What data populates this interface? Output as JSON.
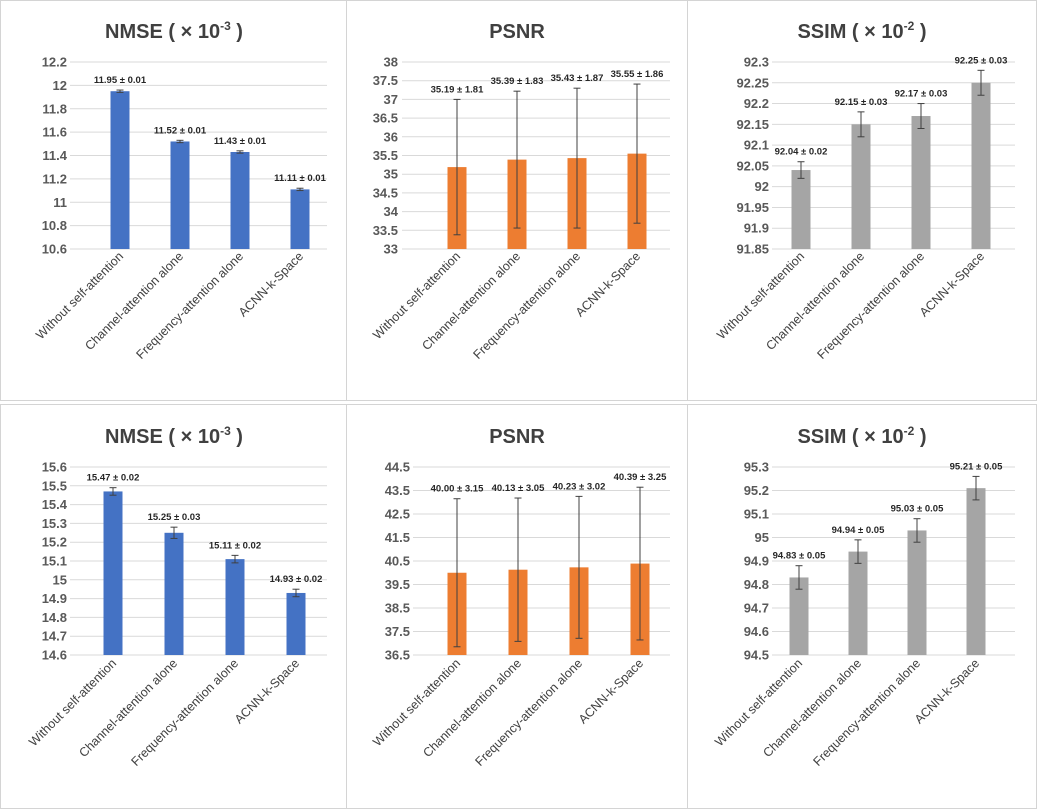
{
  "chart_data": [
    {
      "type": "bar",
      "title_main": "NMSE ( × 10",
      "title_sup": "-3",
      "title_end": " )",
      "color": "#4472c4",
      "categories": [
        "Without self-attention",
        "Channel-attention alone",
        "Frequency-attention alone",
        "ACNN-k-Space"
      ],
      "values": [
        11.95,
        11.52,
        11.43,
        11.11
      ],
      "errors": [
        0.01,
        0.01,
        0.01,
        0.01
      ],
      "data_labels": [
        "11.95 ± 0.01",
        "11.52 ± 0.01",
        "11.43 ± 0.01",
        "11.11 ± 0.01"
      ],
      "ylim": [
        10.6,
        12.2
      ],
      "yticks": [
        "10.6",
        "10.8",
        "11",
        "11.2",
        "11.4",
        "11.6",
        "11.8",
        "12",
        "12.2"
      ],
      "grid": true
    },
    {
      "type": "bar",
      "title_main": "PSNR",
      "title_sup": "",
      "title_end": "",
      "color": "#ed7d31",
      "categories": [
        "Without self-attention",
        "Channel-attention alone",
        "Frequency-attention alone",
        "ACNN-k-Space"
      ],
      "values": [
        35.19,
        35.39,
        35.43,
        35.55
      ],
      "errors": [
        1.81,
        1.83,
        1.87,
        1.86
      ],
      "data_labels": [
        "35.19 ± 1.81",
        "35.39 ± 1.83",
        "35.43 ± 1.87",
        "35.55 ± 1.86"
      ],
      "ylim": [
        33,
        38
      ],
      "yticks": [
        "33",
        "33.5",
        "34",
        "34.5",
        "35",
        "35.5",
        "36",
        "36.5",
        "37",
        "37.5",
        "38"
      ],
      "grid": true
    },
    {
      "type": "bar",
      "title_main": "SSIM ( × 10",
      "title_sup": "-2",
      "title_end": " )",
      "color": "#a5a5a5",
      "categories": [
        "Without self-attention",
        "Channel-attention alone",
        "Frequency-attention alone",
        "ACNN-k-Space"
      ],
      "values": [
        92.04,
        92.15,
        92.17,
        92.25
      ],
      "errors": [
        0.02,
        0.03,
        0.03,
        0.03
      ],
      "data_labels": [
        "92.04 ± 0.02",
        "92.15 ± 0.03",
        "92.17 ± 0.03",
        "92.25 ± 0.03"
      ],
      "ylim": [
        91.85,
        92.3
      ],
      "yticks": [
        "91.85",
        "91.9",
        "91.95",
        "92",
        "92.05",
        "92.1",
        "92.15",
        "92.2",
        "92.25",
        "92.3"
      ],
      "grid": true
    },
    {
      "type": "bar",
      "title_main": "NMSE ( × 10",
      "title_sup": "-3",
      "title_end": " )",
      "color": "#4472c4",
      "categories": [
        "Without self-attention",
        "Channel-attention alone",
        "Frequency-attention alone",
        "ACNN-k-Space"
      ],
      "values": [
        15.47,
        15.25,
        15.11,
        14.93
      ],
      "errors": [
        0.02,
        0.03,
        0.02,
        0.02
      ],
      "data_labels": [
        "15.47 ± 0.02",
        "15.25 ± 0.03",
        "15.11 ± 0.02",
        "14.93 ± 0.02"
      ],
      "ylim": [
        14.6,
        15.6
      ],
      "yticks": [
        "14.6",
        "14.7",
        "14.8",
        "14.9",
        "15",
        "15.1",
        "15.2",
        "15.3",
        "15.4",
        "15.5",
        "15.6"
      ],
      "grid": true
    },
    {
      "type": "bar",
      "title_main": "PSNR",
      "title_sup": "",
      "title_end": "",
      "color": "#ed7d31",
      "categories": [
        "Without self-attention",
        "Channel-attention alone",
        "Frequency-attention alone",
        "ACNN-k-Space"
      ],
      "values": [
        40.0,
        40.13,
        40.23,
        40.39
      ],
      "errors": [
        3.15,
        3.05,
        3.02,
        3.25
      ],
      "data_labels": [
        "40.00 ± 3.15",
        "40.13 ± 3.05",
        "40.23 ± 3.02",
        "40.39 ± 3.25"
      ],
      "ylim": [
        36.5,
        44.5
      ],
      "yticks": [
        "36.5",
        "37.5",
        "38.5",
        "39.5",
        "40.5",
        "41.5",
        "42.5",
        "43.5",
        "44.5"
      ],
      "grid": true
    },
    {
      "type": "bar",
      "title_main": "SSIM ( × 10",
      "title_sup": "-2",
      "title_end": " )",
      "color": "#a5a5a5",
      "categories": [
        "Without self-attention",
        "Channel-attention alone",
        "Frequency-attention alone",
        "ACNN-k-Space"
      ],
      "values": [
        94.83,
        94.94,
        95.03,
        95.21
      ],
      "errors": [
        0.05,
        0.05,
        0.05,
        0.05
      ],
      "data_labels": [
        "94.83 ± 0.05",
        "94.94 ± 0.05",
        "95.03 ± 0.05",
        "95.21 ± 0.05"
      ],
      "ylim": [
        94.5,
        95.3
      ],
      "yticks": [
        "94.5",
        "94.6",
        "94.7",
        "94.8",
        "94.9",
        "95",
        "95.1",
        "95.2",
        "95.3"
      ],
      "grid": true
    }
  ]
}
